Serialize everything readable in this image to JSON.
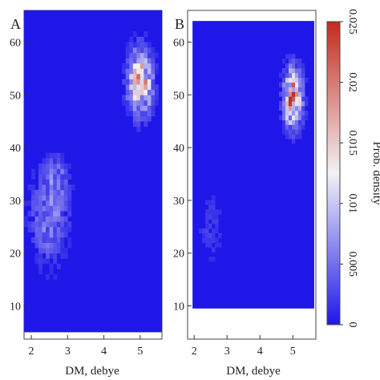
{
  "chart_data": [
    {
      "type": "heatmap",
      "panel_label": "A",
      "xlabel": "DM, debye",
      "ylabel": "",
      "xlim": [
        1.8,
        5.6
      ],
      "ylim": [
        3.7,
        66
      ],
      "x_ticks": [
        2,
        3,
        4,
        5
      ],
      "y_ticks": [
        10,
        20,
        30,
        40,
        50,
        60
      ],
      "data_extent": {
        "x": [
          1.8,
          5.6
        ],
        "y": [
          5,
          66
        ]
      },
      "hotspots": [
        {
          "x": 5.0,
          "y": 52.5,
          "sx": 0.22,
          "sy": 4.0,
          "peak": 0.018
        },
        {
          "x": 2.5,
          "y": 27.0,
          "sx": 0.35,
          "sy": 6.0,
          "peak": 0.006
        },
        {
          "x": 2.7,
          "y": 34.5,
          "sx": 0.2,
          "sy": 2.5,
          "peak": 0.004
        }
      ]
    },
    {
      "type": "heatmap",
      "panel_label": "B",
      "xlabel": "DM, debye",
      "ylabel": "",
      "xlim": [
        1.8,
        5.7
      ],
      "ylim": [
        3.7,
        66
      ],
      "x_ticks": [
        2,
        3,
        4,
        5
      ],
      "y_ticks": [
        10,
        20,
        30,
        40,
        50,
        60
      ],
      "data_extent": {
        "x": [
          1.95,
          5.65
        ],
        "y": [
          9.5,
          64
        ]
      },
      "hotspots": [
        {
          "x": 5.0,
          "y": 49.5,
          "sx": 0.18,
          "sy": 3.5,
          "peak": 0.022
        },
        {
          "x": 2.5,
          "y": 25.0,
          "sx": 0.3,
          "sy": 5.0,
          "peak": 0.002
        }
      ]
    }
  ],
  "colorbar": {
    "label": "Prob. density",
    "range": [
      0,
      0.025
    ],
    "ticks": [
      "0",
      "0.005",
      "0.01",
      "0.015",
      "0.02",
      "0.025"
    ],
    "colors": [
      "#1f17e8",
      "#f2f2f5",
      "#c42a1e"
    ]
  }
}
